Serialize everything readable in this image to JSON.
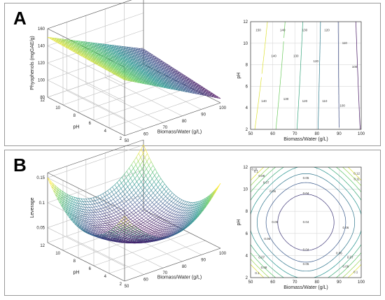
{
  "panels": {
    "a": {
      "label": "A"
    },
    "b": {
      "label": "B"
    }
  },
  "chart_data": [
    {
      "type": "surface",
      "panel": "A",
      "xlabel": "Biomass/Water (g/L)",
      "ylabel": "pH",
      "zlabel": "Phyophenols (mgGAE/g)",
      "x_range": [
        50,
        100
      ],
      "y_range": [
        2,
        12
      ],
      "z_range": [
        80,
        160
      ],
      "x_ticks": [
        50,
        60,
        70,
        80,
        90,
        100
      ],
      "y_ticks": [
        2,
        4,
        6,
        8,
        10,
        12
      ],
      "z_ticks": [
        80,
        100,
        120,
        140,
        160
      ],
      "surface_corners": [
        {
          "x": 50,
          "y": 12,
          "z": 150
        },
        {
          "x": 50,
          "y": 2,
          "z": 145
        },
        {
          "x": 100,
          "y": 2,
          "z": 85
        },
        {
          "x": 100,
          "y": 12,
          "z": 98
        }
      ],
      "colormap": "viridis (high=yellow, low=purple)",
      "grid": true
    },
    {
      "type": "contour",
      "panel": "A",
      "xlabel": "Biomass/Water (g/L)",
      "ylabel": "pH",
      "x_range": [
        50,
        100
      ],
      "y_range": [
        2,
        12
      ],
      "x_ticks": [
        50,
        60,
        70,
        80,
        90,
        100
      ],
      "y_ticks": [
        2,
        4,
        6,
        8,
        10,
        12
      ],
      "levels": [
        100,
        110,
        120,
        130,
        140,
        150
      ],
      "level_labels": [
        {
          "text": "150",
          "x": 53.5,
          "y": 11.2
        },
        {
          "text": "140",
          "x": 64.5,
          "y": 11.2
        },
        {
          "text": "130",
          "x": 74.5,
          "y": 11.2
        },
        {
          "text": "120",
          "x": 84.5,
          "y": 11.2
        },
        {
          "text": "110",
          "x": 92.5,
          "y": 10.0
        },
        {
          "text": "100",
          "x": 97.0,
          "y": 7.8
        },
        {
          "text": "140",
          "x": 60.5,
          "y": 8.8
        },
        {
          "text": "130",
          "x": 70.5,
          "y": 8.8
        },
        {
          "text": "120",
          "x": 79.5,
          "y": 8.3
        },
        {
          "text": "140",
          "x": 56.0,
          "y": 4.6
        },
        {
          "text": "130",
          "x": 66.0,
          "y": 4.8
        },
        {
          "text": "120",
          "x": 74.5,
          "y": 4.6
        },
        {
          "text": "110",
          "x": 83.5,
          "y": 4.6
        },
        {
          "text": "100",
          "x": 91.5,
          "y": 4.2
        }
      ],
      "grid": true
    },
    {
      "type": "surface",
      "panel": "B",
      "xlabel": "Biomass/Water (g/L)",
      "ylabel": "pH",
      "zlabel": "Leverage",
      "x_range": [
        50,
        100
      ],
      "y_range": [
        2,
        12
      ],
      "z_range": [
        0.02,
        0.16
      ],
      "x_ticks": [
        50,
        60,
        70,
        80,
        90,
        100
      ],
      "y_ticks": [
        2,
        4,
        6,
        8,
        10,
        12
      ],
      "z_ticks": [
        0.05,
        0.1,
        0.15
      ],
      "surface_min": {
        "x": 75,
        "y": 7,
        "z": 0.04
      },
      "surface_corner_max": 0.15,
      "colormap": "viridis (high=yellow, low=purple)",
      "grid": true
    },
    {
      "type": "contour",
      "panel": "B",
      "xlabel": "Biomass/Water (g/L)",
      "ylabel": "pH",
      "x_range": [
        50,
        100
      ],
      "y_range": [
        2,
        12
      ],
      "x_ticks": [
        50,
        60,
        70,
        80,
        90,
        100
      ],
      "y_ticks": [
        2,
        4,
        6,
        8,
        10,
        12
      ],
      "levels": [
        0.04,
        0.05,
        0.06,
        0.07,
        0.08,
        0.09,
        0.1,
        0.11,
        0.12
      ],
      "level_labels": [
        {
          "text": "0.04",
          "x": 75,
          "y": 9.6
        },
        {
          "text": "0.05",
          "x": 75,
          "y": 11.0
        },
        {
          "text": "0.04",
          "x": 75,
          "y": 4.5
        },
        {
          "text": "0.05",
          "x": 75,
          "y": 3.2
        },
        {
          "text": "0.06",
          "x": 60,
          "y": 9.8
        },
        {
          "text": "0.06",
          "x": 90,
          "y": 4.2
        },
        {
          "text": "0.07",
          "x": 57,
          "y": 10.6
        },
        {
          "text": "0.08",
          "x": 55,
          "y": 11.2
        },
        {
          "text": "0.1",
          "x": 52.5,
          "y": 11.6
        },
        {
          "text": "0.11",
          "x": 51.8,
          "y": 11.8
        },
        {
          "text": "0.12",
          "x": 98,
          "y": 11.4
        },
        {
          "text": "0.11",
          "x": 98,
          "y": 10.9
        },
        {
          "text": "0.05",
          "x": 61,
          "y": 7
        },
        {
          "text": "0.06",
          "x": 57.5,
          "y": 5.5
        },
        {
          "text": "0.07",
          "x": 55,
          "y": 3.8
        },
        {
          "text": "0.08",
          "x": 56,
          "y": 2.9
        },
        {
          "text": "0.1",
          "x": 53,
          "y": 2.4
        },
        {
          "text": "0.09",
          "x": 93,
          "y": 3
        },
        {
          "text": "0.07",
          "x": 95,
          "y": 3.8
        },
        {
          "text": "0.1",
          "x": 97.5,
          "y": 2.5
        },
        {
          "text": "0.06",
          "x": 93,
          "y": 6.5
        },
        {
          "text": "0.04",
          "x": 75,
          "y": 7
        }
      ],
      "grid": true
    }
  ]
}
